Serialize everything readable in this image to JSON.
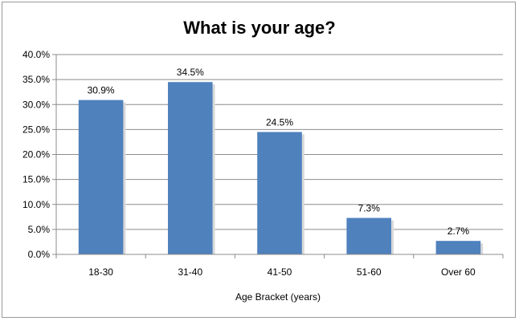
{
  "chart_data": {
    "type": "bar",
    "title": "What is your age?",
    "xlabel": "Age Bracket  (years)",
    "ylabel": "",
    "categories": [
      "18-30",
      "31-40",
      "41-50",
      "51-60",
      "Over 60"
    ],
    "values": [
      30.9,
      34.5,
      24.5,
      7.3,
      2.7
    ],
    "data_labels": [
      "30.9%",
      "34.5%",
      "24.5%",
      "7.3%",
      "2.7%"
    ],
    "ylim": [
      0,
      40
    ],
    "yticks": [
      0,
      5,
      10,
      15,
      20,
      25,
      30,
      35,
      40
    ],
    "ytick_labels": [
      "0.0%",
      "5.0%",
      "10.0%",
      "15.0%",
      "20.0%",
      "25.0%",
      "30.0%",
      "35.0%",
      "40.0%"
    ],
    "grid": true,
    "legend": "none",
    "bar_color": "#4f81bd"
  }
}
